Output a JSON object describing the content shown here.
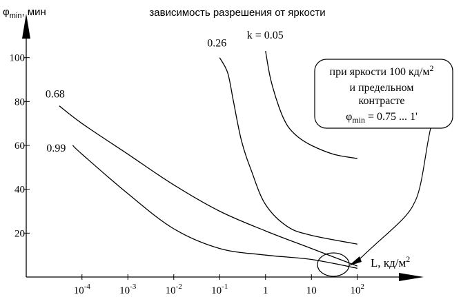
{
  "chart_data": {
    "type": "line",
    "title": "зависимость разрешения от яркости",
    "ylabel": {
      "base": "φ",
      "sub": "min",
      "suffix": ", мин"
    },
    "xlabel": {
      "base": "L, кд/м",
      "sup": "2"
    },
    "xscale": "log",
    "yticks": [
      {
        "value": 20,
        "label": "20"
      },
      {
        "value": 40,
        "label": "40"
      },
      {
        "value": 60,
        "label": "60"
      },
      {
        "value": 80,
        "label": "80"
      },
      {
        "value": 100,
        "label": "100"
      }
    ],
    "xticks": [
      {
        "value": 0.0001,
        "base": "10",
        "sup": "-4"
      },
      {
        "value": 0.001,
        "base": "10",
        "sup": "-3"
      },
      {
        "value": 0.01,
        "base": "10",
        "sup": "-2"
      },
      {
        "value": 0.1,
        "base": "10",
        "sup": "-1"
      },
      {
        "value": 1,
        "base": "1",
        "sup": ""
      },
      {
        "value": 10,
        "base": "10",
        "sup": ""
      },
      {
        "value": 100,
        "base": "10",
        "sup": "2"
      }
    ],
    "xlim": [
      6.1e-06,
      2800
    ],
    "ylim": [
      0,
      120
    ],
    "grid": false,
    "series": [
      {
        "name": "0.68",
        "label": "0.68",
        "points": [
          [
            3.2e-05,
            78
          ],
          [
            0.0001,
            70
          ],
          [
            0.001,
            56
          ],
          [
            0.01,
            42
          ],
          [
            0.1,
            30
          ],
          [
            1,
            21
          ],
          [
            10,
            13
          ],
          [
            100,
            5
          ]
        ]
      },
      {
        "name": "0.99",
        "label": "0.99",
        "points": [
          [
            6.3e-05,
            60
          ],
          [
            0.0001,
            56
          ],
          [
            0.001,
            38
          ],
          [
            0.01,
            22
          ],
          [
            0.1,
            13
          ],
          [
            1,
            10
          ],
          [
            10,
            8
          ],
          [
            100,
            4
          ]
        ]
      },
      {
        "name": "0.26",
        "label": "0.26",
        "points": [
          [
            0.1,
            100
          ],
          [
            0.15,
            93
          ],
          [
            0.2,
            80
          ],
          [
            0.3,
            62
          ],
          [
            0.5,
            48
          ],
          [
            1,
            33
          ],
          [
            3,
            23
          ],
          [
            10,
            19
          ],
          [
            100,
            15
          ]
        ]
      },
      {
        "name": "k = 0.05",
        "label": "k = 0.05",
        "points": [
          [
            1,
            103
          ],
          [
            1.3,
            90
          ],
          [
            2,
            77
          ],
          [
            3,
            69
          ],
          [
            5,
            64
          ],
          [
            10,
            60
          ],
          [
            30,
            56
          ],
          [
            100,
            54
          ]
        ]
      }
    ],
    "annotation": {
      "line1": "при яркости 100 кд/м",
      "line1_sup": "2",
      "line2": "и предельном",
      "line3": "контрасте",
      "line4_base": "φ",
      "line4_sub": "min",
      "line4_rest": " = 0.75 ... 1'"
    }
  }
}
